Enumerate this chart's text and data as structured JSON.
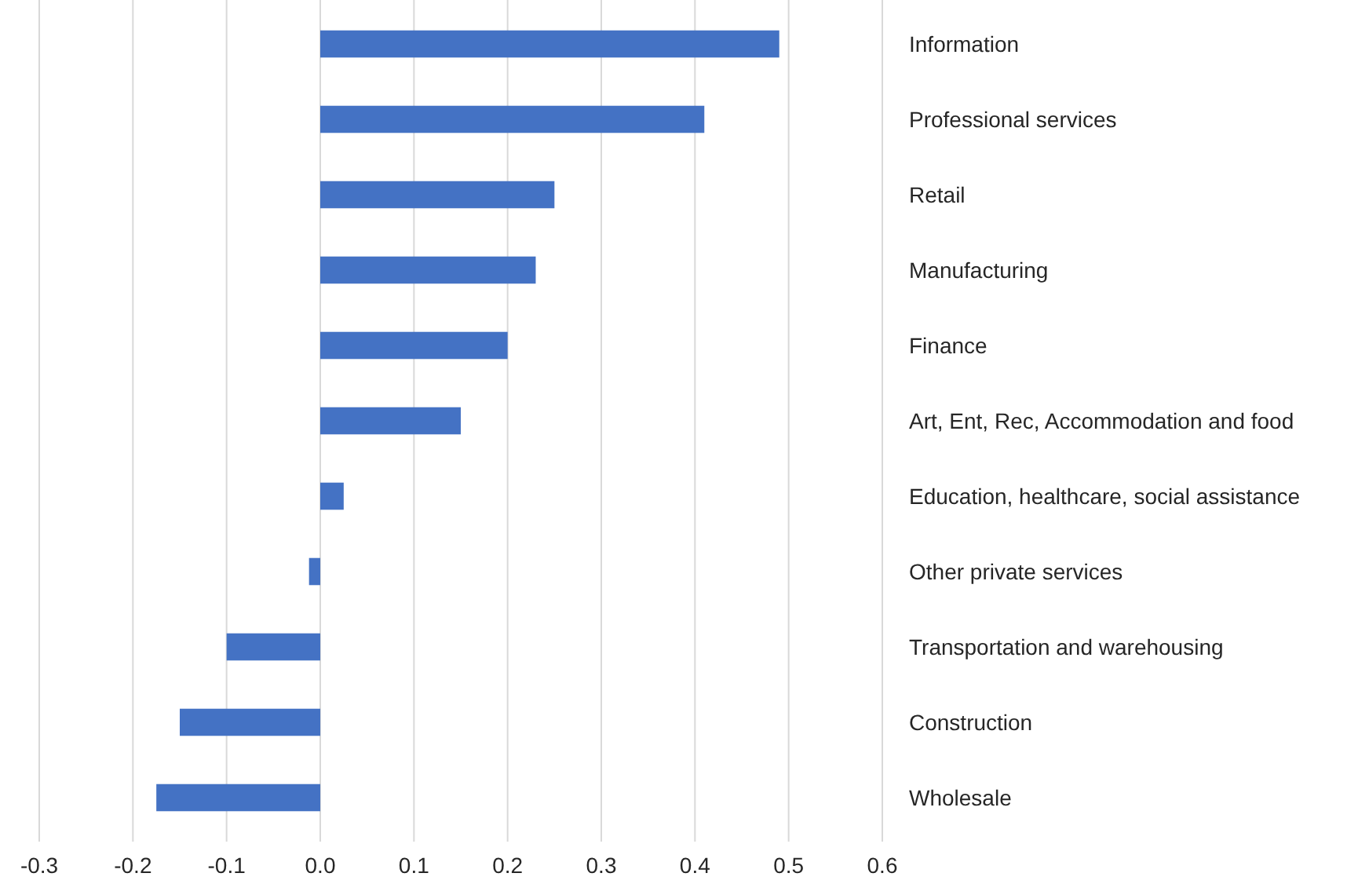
{
  "chart_data": {
    "type": "bar",
    "orientation": "horizontal",
    "categories": [
      "Information",
      "Professional services",
      "Retail",
      "Manufacturing",
      "Finance",
      "Art, Ent, Rec, Accommodation and food",
      "Education, healthcare, social assistance",
      "Other private services",
      "Transportation and warehousing",
      "Construction",
      "Wholesale"
    ],
    "values": [
      0.49,
      0.41,
      0.25,
      0.23,
      0.2,
      0.15,
      0.025,
      -0.012,
      -0.1,
      -0.15,
      -0.175
    ],
    "color": "#4472c4",
    "xlim": [
      -0.3,
      0.6
    ],
    "xticks": [
      {
        "value": -0.3,
        "label": "-0.3"
      },
      {
        "value": -0.2,
        "label": "-0.2"
      },
      {
        "value": -0.1,
        "label": "-0.1"
      },
      {
        "value": 0,
        "label": "0.0"
      },
      {
        "value": 0.1,
        "label": "0.1"
      },
      {
        "value": 0.2,
        "label": "0.2"
      },
      {
        "value": 0.3,
        "label": "0.3"
      },
      {
        "value": 0.4,
        "label": "0.4"
      },
      {
        "value": 0.5,
        "label": "0.5"
      },
      {
        "value": 0.6,
        "label": "0.6"
      }
    ],
    "grid": "x"
  }
}
